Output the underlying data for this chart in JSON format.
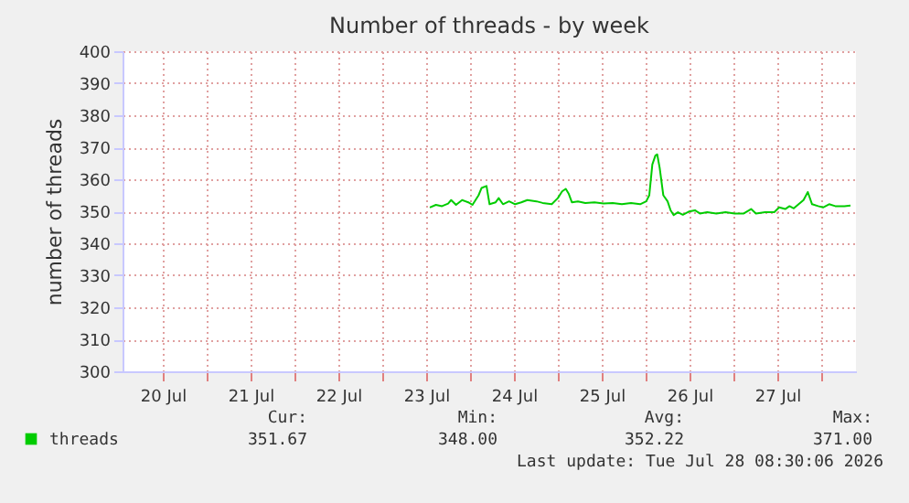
{
  "chart_data": {
    "type": "line",
    "title": "Number of threads - by week",
    "ylabel": "number of threads",
    "xlim": [
      "2026-07-20T01:00",
      "2026-07-28T09:30"
    ],
    "xticks": [
      {
        "value": "2026-07-20T12:00",
        "label": "20 Jul"
      },
      {
        "value": "2026-07-21T00:00",
        "label": null
      },
      {
        "value": "2026-07-21T12:00",
        "label": "21 Jul"
      },
      {
        "value": "2026-07-22T00:00",
        "label": null
      },
      {
        "value": "2026-07-22T12:00",
        "label": "22 Jul"
      },
      {
        "value": "2026-07-23T00:00",
        "label": null
      },
      {
        "value": "2026-07-23T12:00",
        "label": "23 Jul"
      },
      {
        "value": "2026-07-24T00:00",
        "label": null
      },
      {
        "value": "2026-07-24T12:00",
        "label": "24 Jul"
      },
      {
        "value": "2026-07-25T00:00",
        "label": null
      },
      {
        "value": "2026-07-25T12:00",
        "label": "25 Jul"
      },
      {
        "value": "2026-07-26T00:00",
        "label": null
      },
      {
        "value": "2026-07-26T12:00",
        "label": "26 Jul"
      },
      {
        "value": "2026-07-27T00:00",
        "label": null
      },
      {
        "value": "2026-07-27T12:00",
        "label": "27 Jul"
      },
      {
        "value": "2026-07-28T00:00",
        "label": null
      }
    ],
    "ylim": [
      300,
      400
    ],
    "yticks": [
      300,
      310,
      320,
      330,
      340,
      350,
      360,
      370,
      380,
      390,
      400
    ],
    "grid": true,
    "legend": "bottom left",
    "marker": "none",
    "line_style": "solid",
    "x": [
      "2026-07-23T13:00",
      "2026-07-23T14:40",
      "2026-07-23T16:20",
      "2026-07-23T18:00",
      "2026-07-23T18:50",
      "2026-07-23T20:10",
      "2026-07-23T21:50",
      "2026-07-23T23:30",
      "2026-07-24T00:40",
      "2026-07-24T02:20",
      "2026-07-24T03:10",
      "2026-07-24T04:30",
      "2026-07-24T05:20",
      "2026-07-24T07:00",
      "2026-07-24T07:50",
      "2026-07-24T09:00",
      "2026-07-24T10:40",
      "2026-07-24T12:20",
      "2026-07-24T14:00",
      "2026-07-24T15:40",
      "2026-07-24T18:10",
      "2026-07-24T19:50",
      "2026-07-24T22:20",
      "2026-07-25T00:00",
      "2026-07-25T01:10",
      "2026-07-25T02:10",
      "2026-07-25T03:00",
      "2026-07-25T03:50",
      "2026-07-25T05:30",
      "2026-07-25T07:30",
      "2026-07-25T10:00",
      "2026-07-25T12:30",
      "2026-07-25T15:00",
      "2026-07-25T17:30",
      "2026-07-25T20:00",
      "2026-07-25T22:30",
      "2026-07-26T00:10",
      "2026-07-26T01:00",
      "2026-07-26T01:50",
      "2026-07-26T02:40",
      "2026-07-26T03:10",
      "2026-07-26T03:50",
      "2026-07-26T04:50",
      "2026-07-26T06:00",
      "2026-07-26T06:50",
      "2026-07-26T07:40",
      "2026-07-26T08:50",
      "2026-07-26T10:10",
      "2026-07-26T11:50",
      "2026-07-26T13:30",
      "2026-07-26T14:50",
      "2026-07-26T16:50",
      "2026-07-26T19:20",
      "2026-07-26T21:50",
      "2026-07-27T00:20",
      "2026-07-27T02:50",
      "2026-07-27T04:50",
      "2026-07-27T06:10",
      "2026-07-27T08:40",
      "2026-07-27T11:10",
      "2026-07-27T12:30",
      "2026-07-27T14:10",
      "2026-07-27T15:20",
      "2026-07-27T16:30",
      "2026-07-27T17:50",
      "2026-07-27T19:10",
      "2026-07-27T20:20",
      "2026-07-27T21:30",
      "2026-07-27T23:10",
      "2026-07-28T00:30",
      "2026-07-28T02:10",
      "2026-07-28T03:50",
      "2026-07-28T06:20",
      "2026-07-28T08:00"
    ],
    "series": [
      {
        "name": "threads",
        "color": "#00cc00",
        "values": [
          351.2,
          352.0,
          351.6,
          352.4,
          353.5,
          352.0,
          353.5,
          352.8,
          352.0,
          355.0,
          357.3,
          357.9,
          352.2,
          352.8,
          354.1,
          352.2,
          353.1,
          352.2,
          352.8,
          353.5,
          353.1,
          352.6,
          352.2,
          354.1,
          356.2,
          357.0,
          355.4,
          352.8,
          353.1,
          352.6,
          352.8,
          352.4,
          352.6,
          352.2,
          352.6,
          352.2,
          353.1,
          355.0,
          364.6,
          367.4,
          367.8,
          363.6,
          355.0,
          353.1,
          350.3,
          348.8,
          349.7,
          348.9,
          349.9,
          350.3,
          349.3,
          349.7,
          349.3,
          349.7,
          349.3,
          349.3,
          350.7,
          349.3,
          349.7,
          349.7,
          351.2,
          350.7,
          351.6,
          350.9,
          352.2,
          353.5,
          356.0,
          352.2,
          351.6,
          351.2,
          352.2,
          351.6,
          351.6,
          351.8
        ]
      }
    ],
    "annotations": [
      "Cur:",
      "Min:",
      "Avg:",
      "Max:",
      "351.67",
      "348.00",
      "352.22",
      "371.00",
      "Last update: Tue Jul 28 08:30:06 2026"
    ]
  }
}
